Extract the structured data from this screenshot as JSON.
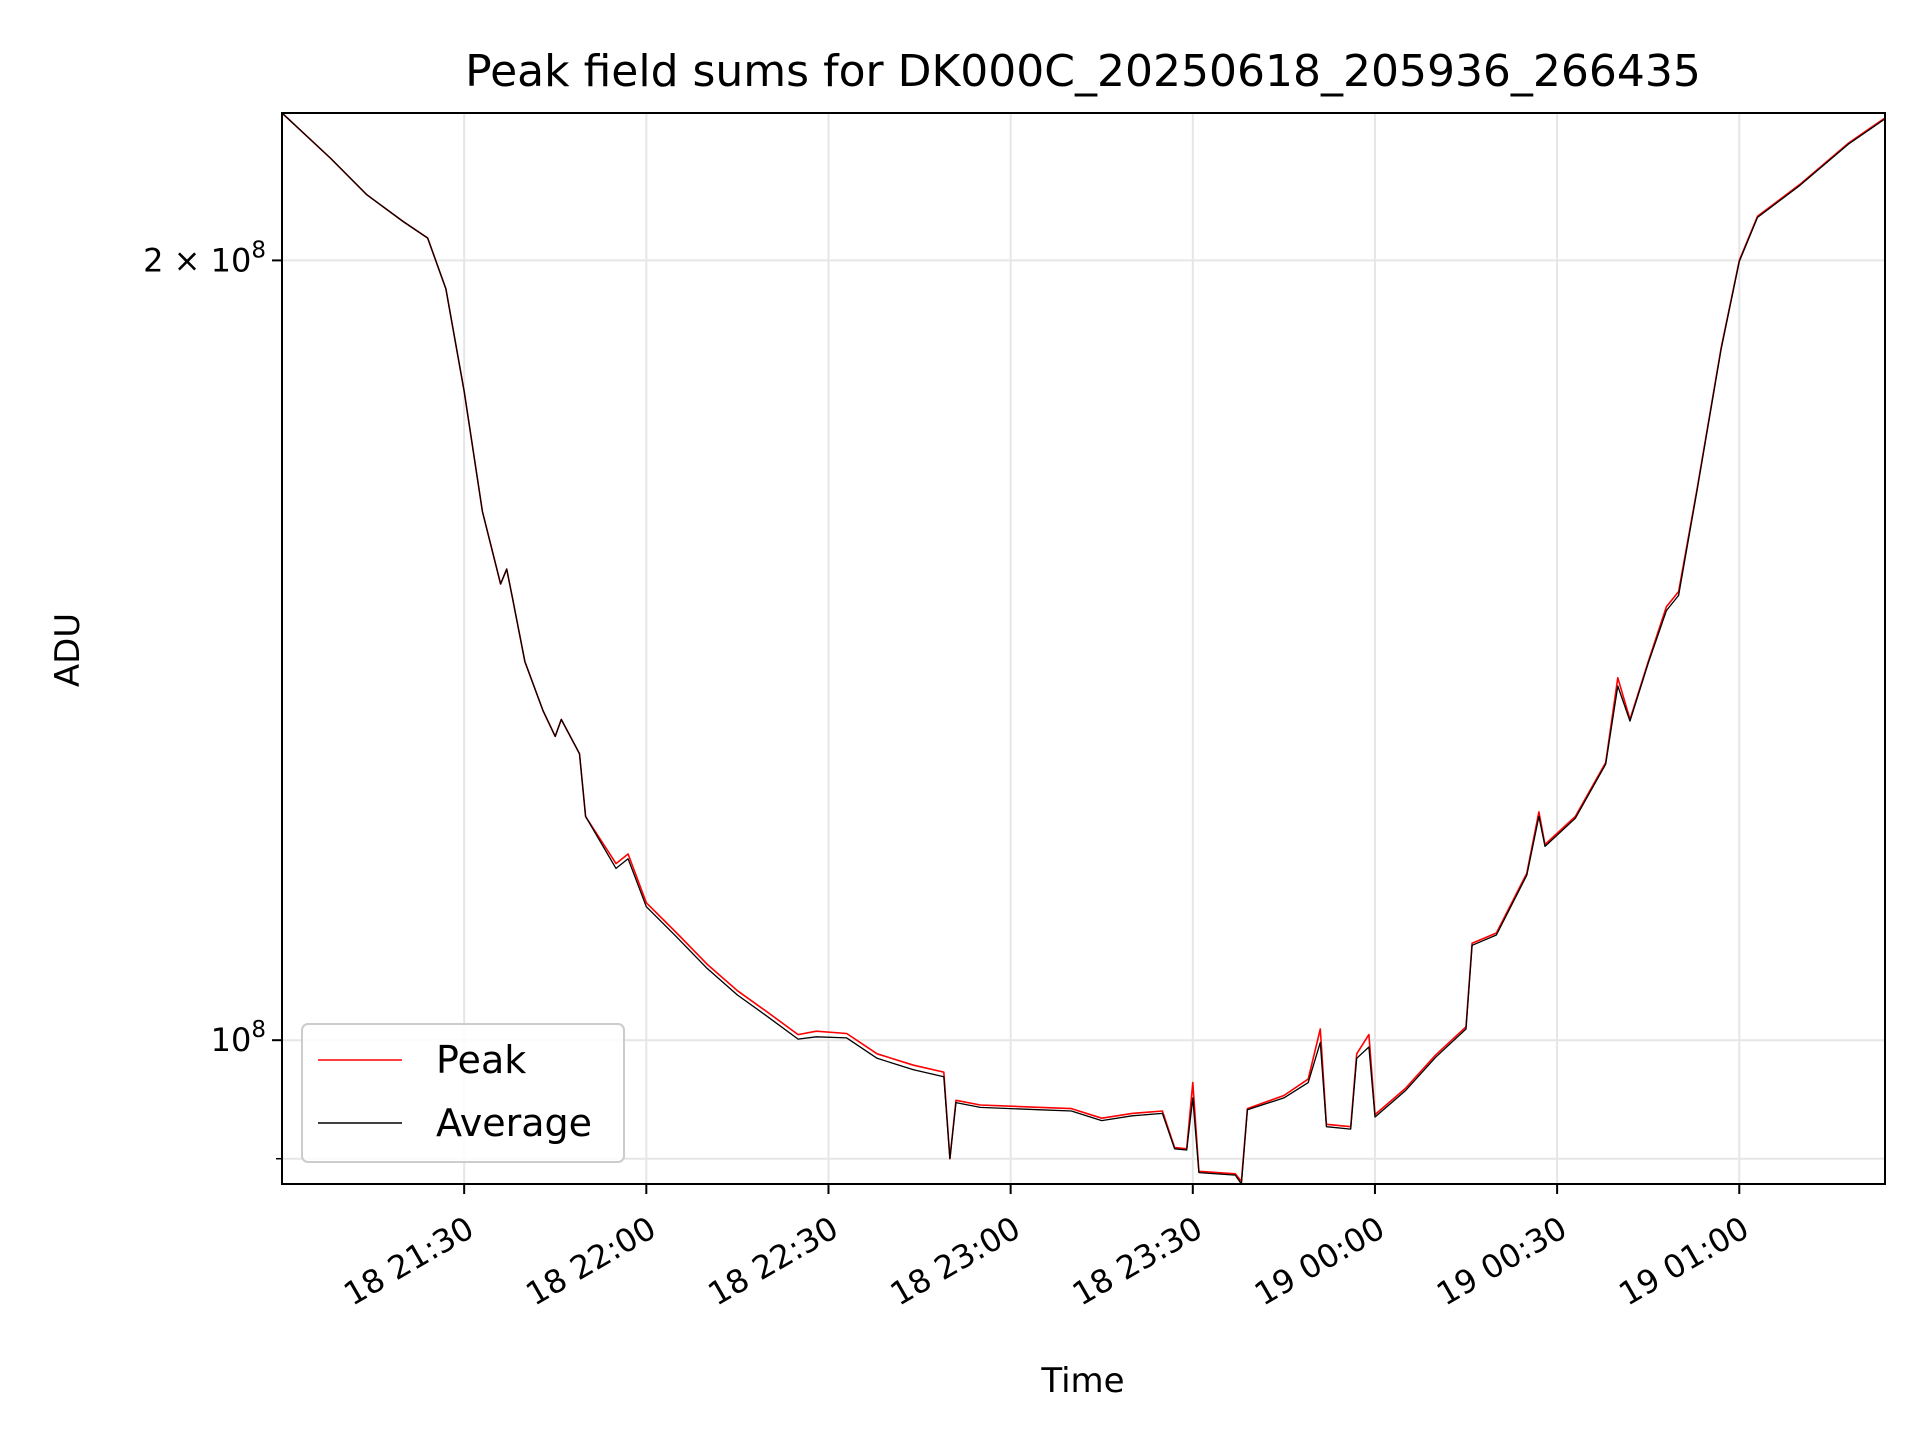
{
  "chart_data": {
    "type": "line",
    "title": "Peak field sums for DK000C_20250618_205936_266435",
    "xlabel": "Time",
    "ylabel": "ADU",
    "x_unit": "datetime",
    "x_range": [
      "2025-06-18 21:00",
      "2025-06-19 01:24"
    ],
    "ylim": [
      88000000,
      228000000
    ],
    "y_scale": "log",
    "grid": true,
    "legend_position": "lower-left",
    "x_ticks": [
      {
        "t": "2025-06-18 21:30",
        "label": "18 21:30"
      },
      {
        "t": "2025-06-18 22:00",
        "label": "18 22:00"
      },
      {
        "t": "2025-06-18 22:30",
        "label": "18 22:30"
      },
      {
        "t": "2025-06-18 23:00",
        "label": "18 23:00"
      },
      {
        "t": "2025-06-18 23:30",
        "label": "18 23:30"
      },
      {
        "t": "2025-06-19 00:00",
        "label": "19 00:00"
      },
      {
        "t": "2025-06-19 00:30",
        "label": "19 00:30"
      },
      {
        "t": "2025-06-19 01:00",
        "label": "19 01:00"
      }
    ],
    "y_ticks": [
      {
        "value": 100000000,
        "label_base": "10",
        "label_exp": "8",
        "label_coef": ""
      },
      {
        "value": 200000000,
        "label_base": "10",
        "label_exp": "8",
        "label_coef": "2 × "
      }
    ],
    "y_minor_ticks": [
      90000000
    ],
    "series": [
      {
        "name": "Peak",
        "color": "#ff0000",
        "points": [
          [
            "2025-06-18 21:00",
            228000000
          ],
          [
            "2025-06-18 21:08",
            219000000
          ],
          [
            "2025-06-18 21:14",
            212000000
          ],
          [
            "2025-06-18 21:20",
            207000000
          ],
          [
            "2025-06-18 21:24",
            204000000
          ],
          [
            "2025-06-18 21:27",
            195000000
          ],
          [
            "2025-06-18 21:30",
            178000000
          ],
          [
            "2025-06-18 21:33",
            160000000
          ],
          [
            "2025-06-18 21:36",
            150000000
          ],
          [
            "2025-06-18 21:37",
            152000000
          ],
          [
            "2025-06-18 21:38",
            148000000
          ],
          [
            "2025-06-18 21:40",
            140000000
          ],
          [
            "2025-06-18 21:43",
            134000000
          ],
          [
            "2025-06-18 21:45",
            131000000
          ],
          [
            "2025-06-18 21:46",
            133000000
          ],
          [
            "2025-06-18 21:49",
            129000000
          ],
          [
            "2025-06-18 21:50",
            122000000
          ],
          [
            "2025-06-18 21:55",
            117000000
          ],
          [
            "2025-06-18 21:57",
            118000000
          ],
          [
            "2025-06-18 22:00",
            113000000
          ],
          [
            "2025-06-18 22:05",
            110000000
          ],
          [
            "2025-06-18 22:10",
            107000000
          ],
          [
            "2025-06-18 22:15",
            104500000
          ],
          [
            "2025-06-18 22:20",
            102500000
          ],
          [
            "2025-06-18 22:25",
            100500000
          ],
          [
            "2025-06-18 22:28",
            100800000
          ],
          [
            "2025-06-18 22:33",
            100600000
          ],
          [
            "2025-06-18 22:38",
            98800000
          ],
          [
            "2025-06-18 22:44",
            97800000
          ],
          [
            "2025-06-18 22:49",
            97200000
          ],
          [
            "2025-06-18 22:50",
            90000000
          ],
          [
            "2025-06-18 22:51",
            94800000
          ],
          [
            "2025-06-18 22:55",
            94400000
          ],
          [
            "2025-06-18 23:00",
            94300000
          ],
          [
            "2025-06-18 23:05",
            94200000
          ],
          [
            "2025-06-18 23:10",
            94100000
          ],
          [
            "2025-06-18 23:15",
            93300000
          ],
          [
            "2025-06-18 23:20",
            93700000
          ],
          [
            "2025-06-18 23:25",
            93900000
          ],
          [
            "2025-06-18 23:27",
            90900000
          ],
          [
            "2025-06-18 23:29",
            90800000
          ],
          [
            "2025-06-18 23:30",
            96300000
          ],
          [
            "2025-06-18 23:31",
            89000000
          ],
          [
            "2025-06-18 23:37",
            88800000
          ],
          [
            "2025-06-18 23:38",
            88200000
          ],
          [
            "2025-06-18 23:39",
            94100000
          ],
          [
            "2025-06-18 23:45",
            95200000
          ],
          [
            "2025-06-18 23:49",
            96600000
          ],
          [
            "2025-06-18 23:51",
            101000000
          ],
          [
            "2025-06-18 23:52",
            92800000
          ],
          [
            "2025-06-18 23:56",
            92600000
          ],
          [
            "2025-06-18 23:57",
            98800000
          ],
          [
            "2025-06-18 23:59",
            100500000
          ],
          [
            "2025-06-19 00:00",
            93600000
          ],
          [
            "2025-06-19 00:05",
            95800000
          ],
          [
            "2025-06-19 00:10",
            98700000
          ],
          [
            "2025-06-19 00:15",
            101200000
          ],
          [
            "2025-06-19 00:16",
            109000000
          ],
          [
            "2025-06-19 00:20",
            110000000
          ],
          [
            "2025-06-19 00:25",
            116000000
          ],
          [
            "2025-06-19 00:27",
            122500000
          ],
          [
            "2025-06-19 00:28",
            119000000
          ],
          [
            "2025-06-19 00:33",
            122000000
          ],
          [
            "2025-06-19 00:38",
            128000000
          ],
          [
            "2025-06-19 00:40",
            138000000
          ],
          [
            "2025-06-19 00:42",
            133000000
          ],
          [
            "2025-06-19 00:45",
            140000000
          ],
          [
            "2025-06-19 00:48",
            147000000
          ],
          [
            "2025-06-19 00:50",
            149000000
          ],
          [
            "2025-06-19 00:53",
            163000000
          ],
          [
            "2025-06-19 00:57",
            185000000
          ],
          [
            "2025-06-19 01:00",
            200000000
          ],
          [
            "2025-06-19 01:03",
            208000000
          ],
          [
            "2025-06-19 01:10",
            214000000
          ],
          [
            "2025-06-19 01:18",
            222000000
          ],
          [
            "2025-06-19 01:24",
            227000000
          ]
        ]
      },
      {
        "name": "Average",
        "color": "#000000",
        "points": [
          [
            "2025-06-18 21:00",
            228000000
          ],
          [
            "2025-06-18 21:08",
            219000000
          ],
          [
            "2025-06-18 21:14",
            212000000
          ],
          [
            "2025-06-18 21:20",
            207000000
          ],
          [
            "2025-06-18 21:24",
            204000000
          ],
          [
            "2025-06-18 21:27",
            195000000
          ],
          [
            "2025-06-18 21:30",
            178000000
          ],
          [
            "2025-06-18 21:33",
            160000000
          ],
          [
            "2025-06-18 21:36",
            150000000
          ],
          [
            "2025-06-18 21:37",
            152000000
          ],
          [
            "2025-06-18 21:38",
            148000000
          ],
          [
            "2025-06-18 21:40",
            140000000
          ],
          [
            "2025-06-18 21:43",
            134000000
          ],
          [
            "2025-06-18 21:45",
            131000000
          ],
          [
            "2025-06-18 21:46",
            133000000
          ],
          [
            "2025-06-18 21:49",
            129000000
          ],
          [
            "2025-06-18 21:50",
            122000000
          ],
          [
            "2025-06-18 21:55",
            116500000
          ],
          [
            "2025-06-18 21:57",
            117500000
          ],
          [
            "2025-06-18 22:00",
            112600000
          ],
          [
            "2025-06-18 22:05",
            109600000
          ],
          [
            "2025-06-18 22:10",
            106600000
          ],
          [
            "2025-06-18 22:15",
            104100000
          ],
          [
            "2025-06-18 22:20",
            102100000
          ],
          [
            "2025-06-18 22:25",
            100100000
          ],
          [
            "2025-06-18 22:28",
            100300000
          ],
          [
            "2025-06-18 22:33",
            100200000
          ],
          [
            "2025-06-18 22:38",
            98400000
          ],
          [
            "2025-06-18 22:44",
            97400000
          ],
          [
            "2025-06-18 22:49",
            96800000
          ],
          [
            "2025-06-18 22:50",
            90000000
          ],
          [
            "2025-06-18 22:51",
            94600000
          ],
          [
            "2025-06-18 22:55",
            94200000
          ],
          [
            "2025-06-18 23:00",
            94100000
          ],
          [
            "2025-06-18 23:05",
            94000000
          ],
          [
            "2025-06-18 23:10",
            93900000
          ],
          [
            "2025-06-18 23:15",
            93100000
          ],
          [
            "2025-06-18 23:20",
            93500000
          ],
          [
            "2025-06-18 23:25",
            93700000
          ],
          [
            "2025-06-18 23:27",
            90800000
          ],
          [
            "2025-06-18 23:29",
            90700000
          ],
          [
            "2025-06-18 23:30",
            95000000
          ],
          [
            "2025-06-18 23:31",
            88900000
          ],
          [
            "2025-06-18 23:37",
            88700000
          ],
          [
            "2025-06-18 23:38",
            88000000
          ],
          [
            "2025-06-18 23:39",
            94000000
          ],
          [
            "2025-06-18 23:45",
            95000000
          ],
          [
            "2025-06-18 23:49",
            96300000
          ],
          [
            "2025-06-18 23:51",
            99800000
          ],
          [
            "2025-06-18 23:52",
            92600000
          ],
          [
            "2025-06-18 23:56",
            92400000
          ],
          [
            "2025-06-18 23:57",
            98400000
          ],
          [
            "2025-06-18 23:59",
            99400000
          ],
          [
            "2025-06-19 00:00",
            93400000
          ],
          [
            "2025-06-19 00:05",
            95600000
          ],
          [
            "2025-06-19 00:10",
            98500000
          ],
          [
            "2025-06-19 00:15",
            101000000
          ],
          [
            "2025-06-19 00:16",
            108800000
          ],
          [
            "2025-06-19 00:20",
            109800000
          ],
          [
            "2025-06-19 00:25",
            115800000
          ],
          [
            "2025-06-19 00:27",
            122000000
          ],
          [
            "2025-06-19 00:28",
            118800000
          ],
          [
            "2025-06-19 00:33",
            121800000
          ],
          [
            "2025-06-19 00:38",
            127800000
          ],
          [
            "2025-06-19 00:40",
            137000000
          ],
          [
            "2025-06-19 00:42",
            132800000
          ],
          [
            "2025-06-19 00:45",
            139800000
          ],
          [
            "2025-06-19 00:48",
            146500000
          ],
          [
            "2025-06-19 00:50",
            148500000
          ],
          [
            "2025-06-19 00:53",
            162800000
          ],
          [
            "2025-06-19 00:57",
            184800000
          ],
          [
            "2025-06-19 01:00",
            199800000
          ],
          [
            "2025-06-19 01:03",
            207800000
          ],
          [
            "2025-06-19 01:10",
            213800000
          ],
          [
            "2025-06-19 01:18",
            221800000
          ],
          [
            "2025-06-19 01:24",
            226800000
          ]
        ]
      }
    ]
  }
}
